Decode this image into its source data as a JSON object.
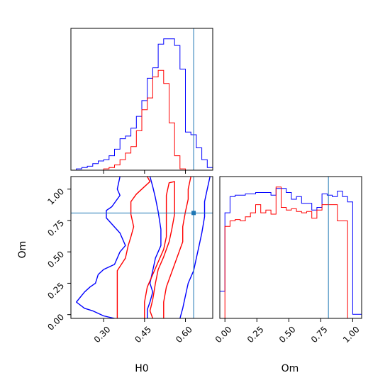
{
  "chart_data": [
    {
      "type": "histogram",
      "panel": "H0 marginal",
      "xlabel": "",
      "xlim": [
        0.18,
        0.7
      ],
      "truth": 0.63,
      "bin_edges": [
        0.18,
        0.2,
        0.22,
        0.24,
        0.26,
        0.28,
        0.3,
        0.32,
        0.34,
        0.36,
        0.38,
        0.4,
        0.42,
        0.44,
        0.46,
        0.48,
        0.5,
        0.52,
        0.54,
        0.56,
        0.58,
        0.6,
        0.62,
        0.64,
        0.66,
        0.68,
        0.7
      ],
      "series": [
        {
          "color": "#0000ff",
          "values": [
            0,
            1,
            2,
            3,
            5,
            7,
            8,
            11,
            16,
            24,
            26,
            32,
            41,
            53,
            70,
            78,
            96,
            100,
            100,
            95,
            77,
            29,
            27,
            17,
            8,
            2
          ]
        },
        {
          "color": "#ff0000",
          "values": [
            0,
            0,
            0,
            0,
            0,
            0,
            1,
            2,
            4,
            8,
            13,
            18,
            30,
            46,
            55,
            71,
            76,
            66,
            36,
            11,
            1,
            0,
            0,
            0,
            0,
            0
          ]
        }
      ]
    },
    {
      "type": "contour",
      "panel": "H0 vs Om",
      "xlabel": "H0",
      "ylabel": "Om",
      "xlim": [
        0.18,
        0.7
      ],
      "ylim": [
        -0.03,
        1.1
      ],
      "xticks": [
        "0.30",
        "0.45",
        "0.60"
      ],
      "yticks": [
        "0.00",
        "0.25",
        "0.50",
        "0.75",
        "1.00"
      ],
      "truth": {
        "H0": 0.63,
        "Om": 0.81
      },
      "series": [
        {
          "color": "#0000ff",
          "contours": [
            [
              [
                0.36,
                1.1
              ],
              [
                0.35,
                1.0
              ],
              [
                0.36,
                0.95
              ],
              [
                0.33,
                0.86
              ],
              [
                0.31,
                0.83
              ],
              [
                0.31,
                0.77
              ],
              [
                0.36,
                0.65
              ],
              [
                0.38,
                0.55
              ],
              [
                0.36,
                0.5
              ],
              [
                0.34,
                0.4
              ],
              [
                0.3,
                0.36
              ],
              [
                0.28,
                0.32
              ],
              [
                0.27,
                0.25
              ],
              [
                0.25,
                0.22
              ],
              [
                0.23,
                0.18
              ],
              [
                0.2,
                0.1
              ],
              [
                0.23,
                0.05
              ],
              [
                0.26,
                0.03
              ],
              [
                0.3,
                -0.01
              ],
              [
                0.34,
                -0.03
              ]
            ],
            [
              [
                0.47,
                1.1
              ],
              [
                0.48,
                1.02
              ],
              [
                0.49,
                0.93
              ],
              [
                0.5,
                0.82
              ],
              [
                0.51,
                0.68
              ],
              [
                0.51,
                0.55
              ],
              [
                0.49,
                0.45
              ],
              [
                0.48,
                0.35
              ],
              [
                0.47,
                0.25
              ],
              [
                0.48,
                0.18
              ],
              [
                0.47,
                0.1
              ],
              [
                0.46,
                0.04
              ],
              [
                0.46,
                -0.03
              ]
            ],
            [
              [
                0.69,
                1.1
              ],
              [
                0.68,
                1.0
              ],
              [
                0.67,
                0.9
              ],
              [
                0.67,
                0.78
              ],
              [
                0.66,
                0.65
              ],
              [
                0.65,
                0.55
              ],
              [
                0.64,
                0.45
              ],
              [
                0.63,
                0.35
              ],
              [
                0.61,
                0.25
              ],
              [
                0.6,
                0.15
              ],
              [
                0.59,
                0.05
              ],
              [
                0.58,
                -0.03
              ]
            ]
          ]
        },
        {
          "color": "#ff0000",
          "contours": [
            [
              [
                0.35,
                -0.03
              ],
              [
                0.35,
                0.05
              ],
              [
                0.35,
                0.2
              ],
              [
                0.35,
                0.35
              ],
              [
                0.38,
                0.45
              ],
              [
                0.39,
                0.55
              ],
              [
                0.4,
                0.62
              ],
              [
                0.41,
                0.7
              ],
              [
                0.4,
                0.8
              ],
              [
                0.4,
                0.9
              ],
              [
                0.42,
                0.96
              ],
              [
                0.45,
                1.02
              ],
              [
                0.47,
                1.06
              ],
              [
                0.46,
                1.1
              ]
            ],
            [
              [
                0.45,
                -0.03
              ],
              [
                0.45,
                0.1
              ],
              [
                0.46,
                0.22
              ],
              [
                0.48,
                0.32
              ],
              [
                0.5,
                0.42
              ],
              [
                0.52,
                0.52
              ],
              [
                0.53,
                0.62
              ],
              [
                0.53,
                0.72
              ],
              [
                0.53,
                0.85
              ],
              [
                0.53,
                0.95
              ],
              [
                0.54,
                1.05
              ],
              [
                0.56,
                1.06
              ],
              [
                0.56,
                0.95
              ],
              [
                0.56,
                0.8
              ],
              [
                0.55,
                0.68
              ],
              [
                0.54,
                0.58
              ],
              [
                0.52,
                0.46
              ],
              [
                0.5,
                0.36
              ],
              [
                0.49,
                0.25
              ],
              [
                0.48,
                0.12
              ],
              [
                0.47,
                0.03
              ],
              [
                0.48,
                -0.03
              ]
            ],
            [
              [
                0.52,
                -0.03
              ],
              [
                0.52,
                0.1
              ],
              [
                0.53,
                0.22
              ],
              [
                0.55,
                0.34
              ],
              [
                0.57,
                0.46
              ],
              [
                0.59,
                0.58
              ],
              [
                0.59,
                0.7
              ],
              [
                0.6,
                0.82
              ],
              [
                0.61,
                0.92
              ],
              [
                0.61,
                1.0
              ],
              [
                0.62,
                1.1
              ]
            ]
          ]
        }
      ]
    },
    {
      "type": "histogram",
      "panel": "Om marginal",
      "xlabel": "Om",
      "xlim": [
        -0.04,
        1.07
      ],
      "xticks": [
        "0.00",
        "0.25",
        "0.50",
        "0.75",
        "1.00"
      ],
      "truth": 0.81,
      "bin_edges": [
        -0.04,
        0.0,
        0.04,
        0.08,
        0.12,
        0.16,
        0.2,
        0.24,
        0.28,
        0.32,
        0.36,
        0.4,
        0.44,
        0.48,
        0.52,
        0.56,
        0.6,
        0.64,
        0.68,
        0.72,
        0.76,
        0.8,
        0.84,
        0.88,
        0.92,
        0.96,
        1.0,
        1.04,
        1.07
      ],
      "series": [
        {
          "color": "#0000ff",
          "values": [
            0.2,
            0.78,
            0.9,
            0.91,
            0.91,
            0.92,
            0.92,
            0.93,
            0.93,
            0.93,
            0.91,
            0.96,
            0.96,
            0.93,
            0.88,
            0.9,
            0.85,
            0.85,
            0.8,
            0.82,
            0.92,
            0.91,
            0.9,
            0.94,
            0.9,
            0.86,
            0.03,
            0.03
          ]
        },
        {
          "color": "#ff0000",
          "values": [
            0.0,
            0.68,
            0.72,
            0.73,
            0.72,
            0.75,
            0.78,
            0.84,
            0.78,
            0.8,
            0.77,
            0.97,
            0.82,
            0.8,
            0.81,
            0.79,
            0.78,
            0.79,
            0.74,
            0.8,
            0.84,
            0.84,
            0.84,
            0.72,
            0.72,
            0.0,
            0.0,
            0.0
          ]
        }
      ]
    }
  ],
  "colors": {
    "truth_line": "#1f77b4",
    "samples_a": "#0000ff",
    "samples_b": "#ff0000"
  }
}
